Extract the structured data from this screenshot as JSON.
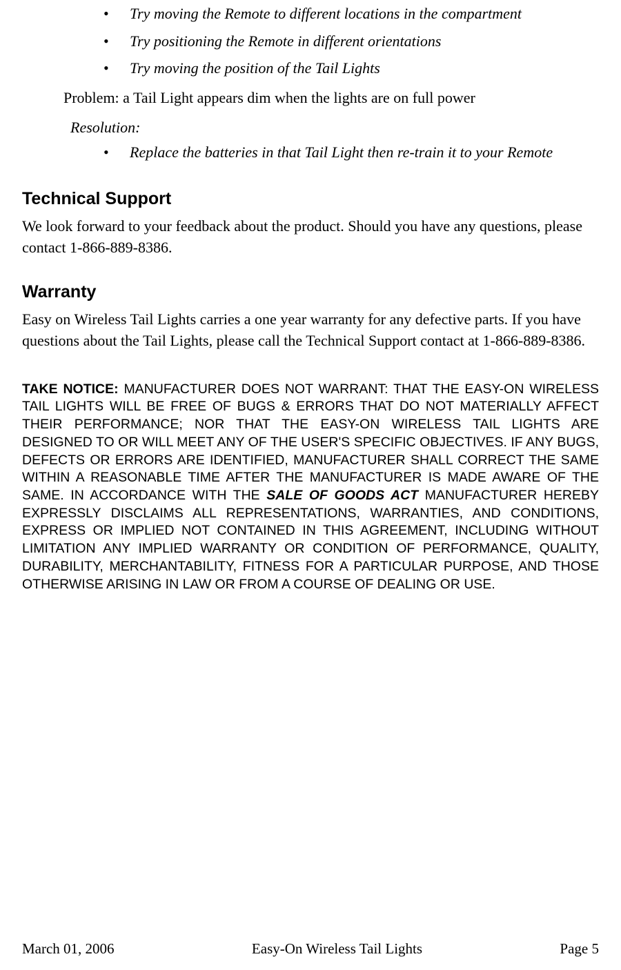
{
  "troubleshooting": {
    "bullets_top": [
      "Try moving the Remote to different locations in the compartment",
      "Try positioning the Remote in different orientations",
      "Try moving the position of the Tail Lights"
    ],
    "problem_label": "Problem: a Tail Light appears dim when the lights are on full power",
    "resolution_label": "Resolution:",
    "bullets_resolution": [
      "Replace the batteries in that Tail Light then re-train it to your Remote"
    ]
  },
  "tech_support": {
    "heading": "Technical Support",
    "body": "We look forward to your feedback about the product. Should you have any questions, please contact 1-866-889-8386."
  },
  "warranty": {
    "heading": "Warranty",
    "body": "Easy on Wireless Tail Lights carries a one year warranty for any defective parts. If you have questions about the Tail Lights, please call the Technical Support contact at 1-866-889-8386."
  },
  "notice": {
    "lead": "TAKE NOTICE:",
    "text_before_emph": " MANUFACTURER DOES NOT WARRANT: THAT THE EASY-ON WIRELESS TAIL LIGHTS WILL BE FREE OF BUGS & ERRORS THAT DO NOT MATERIALLY AFFECT THEIR PERFORMANCE; NOR THAT THE EASY-ON WIRELESS TAIL LIGHTS ARE DESIGNED TO OR WILL MEET ANY OF THE USER'S SPECIFIC OBJECTIVES. IF ANY BUGS, DEFECTS OR ERRORS ARE IDENTIFIED, MANUFACTURER SHALL CORRECT THE SAME WITHIN A REASONABLE TIME AFTER THE MANUFACTURER IS MADE AWARE OF THE SAME. IN ACCORDANCE WITH THE ",
    "emph": "SALE OF GOODS ACT",
    "text_after_emph": " MANUFACTURER HEREBY EXPRESSLY DISCLAIMS ALL REPRESENTATIONS, WARRANTIES, AND CONDITIONS, EXPRESS OR IMPLIED NOT CONTAINED IN THIS AGREEMENT, INCLUDING WITHOUT LIMITATION ANY IMPLIED WARRANTY OR CONDITION OF PERFORMANCE, QUALITY, DURABILITY, MERCHANTABILITY, FITNESS FOR A PARTICULAR PURPOSE, AND THOSE OTHERWISE ARISING IN LAW OR FROM A COURSE OF DEALING OR USE."
  },
  "footer": {
    "date": "March 01, 2006",
    "title": "Easy-On Wireless Tail Lights",
    "page": "Page 5"
  }
}
